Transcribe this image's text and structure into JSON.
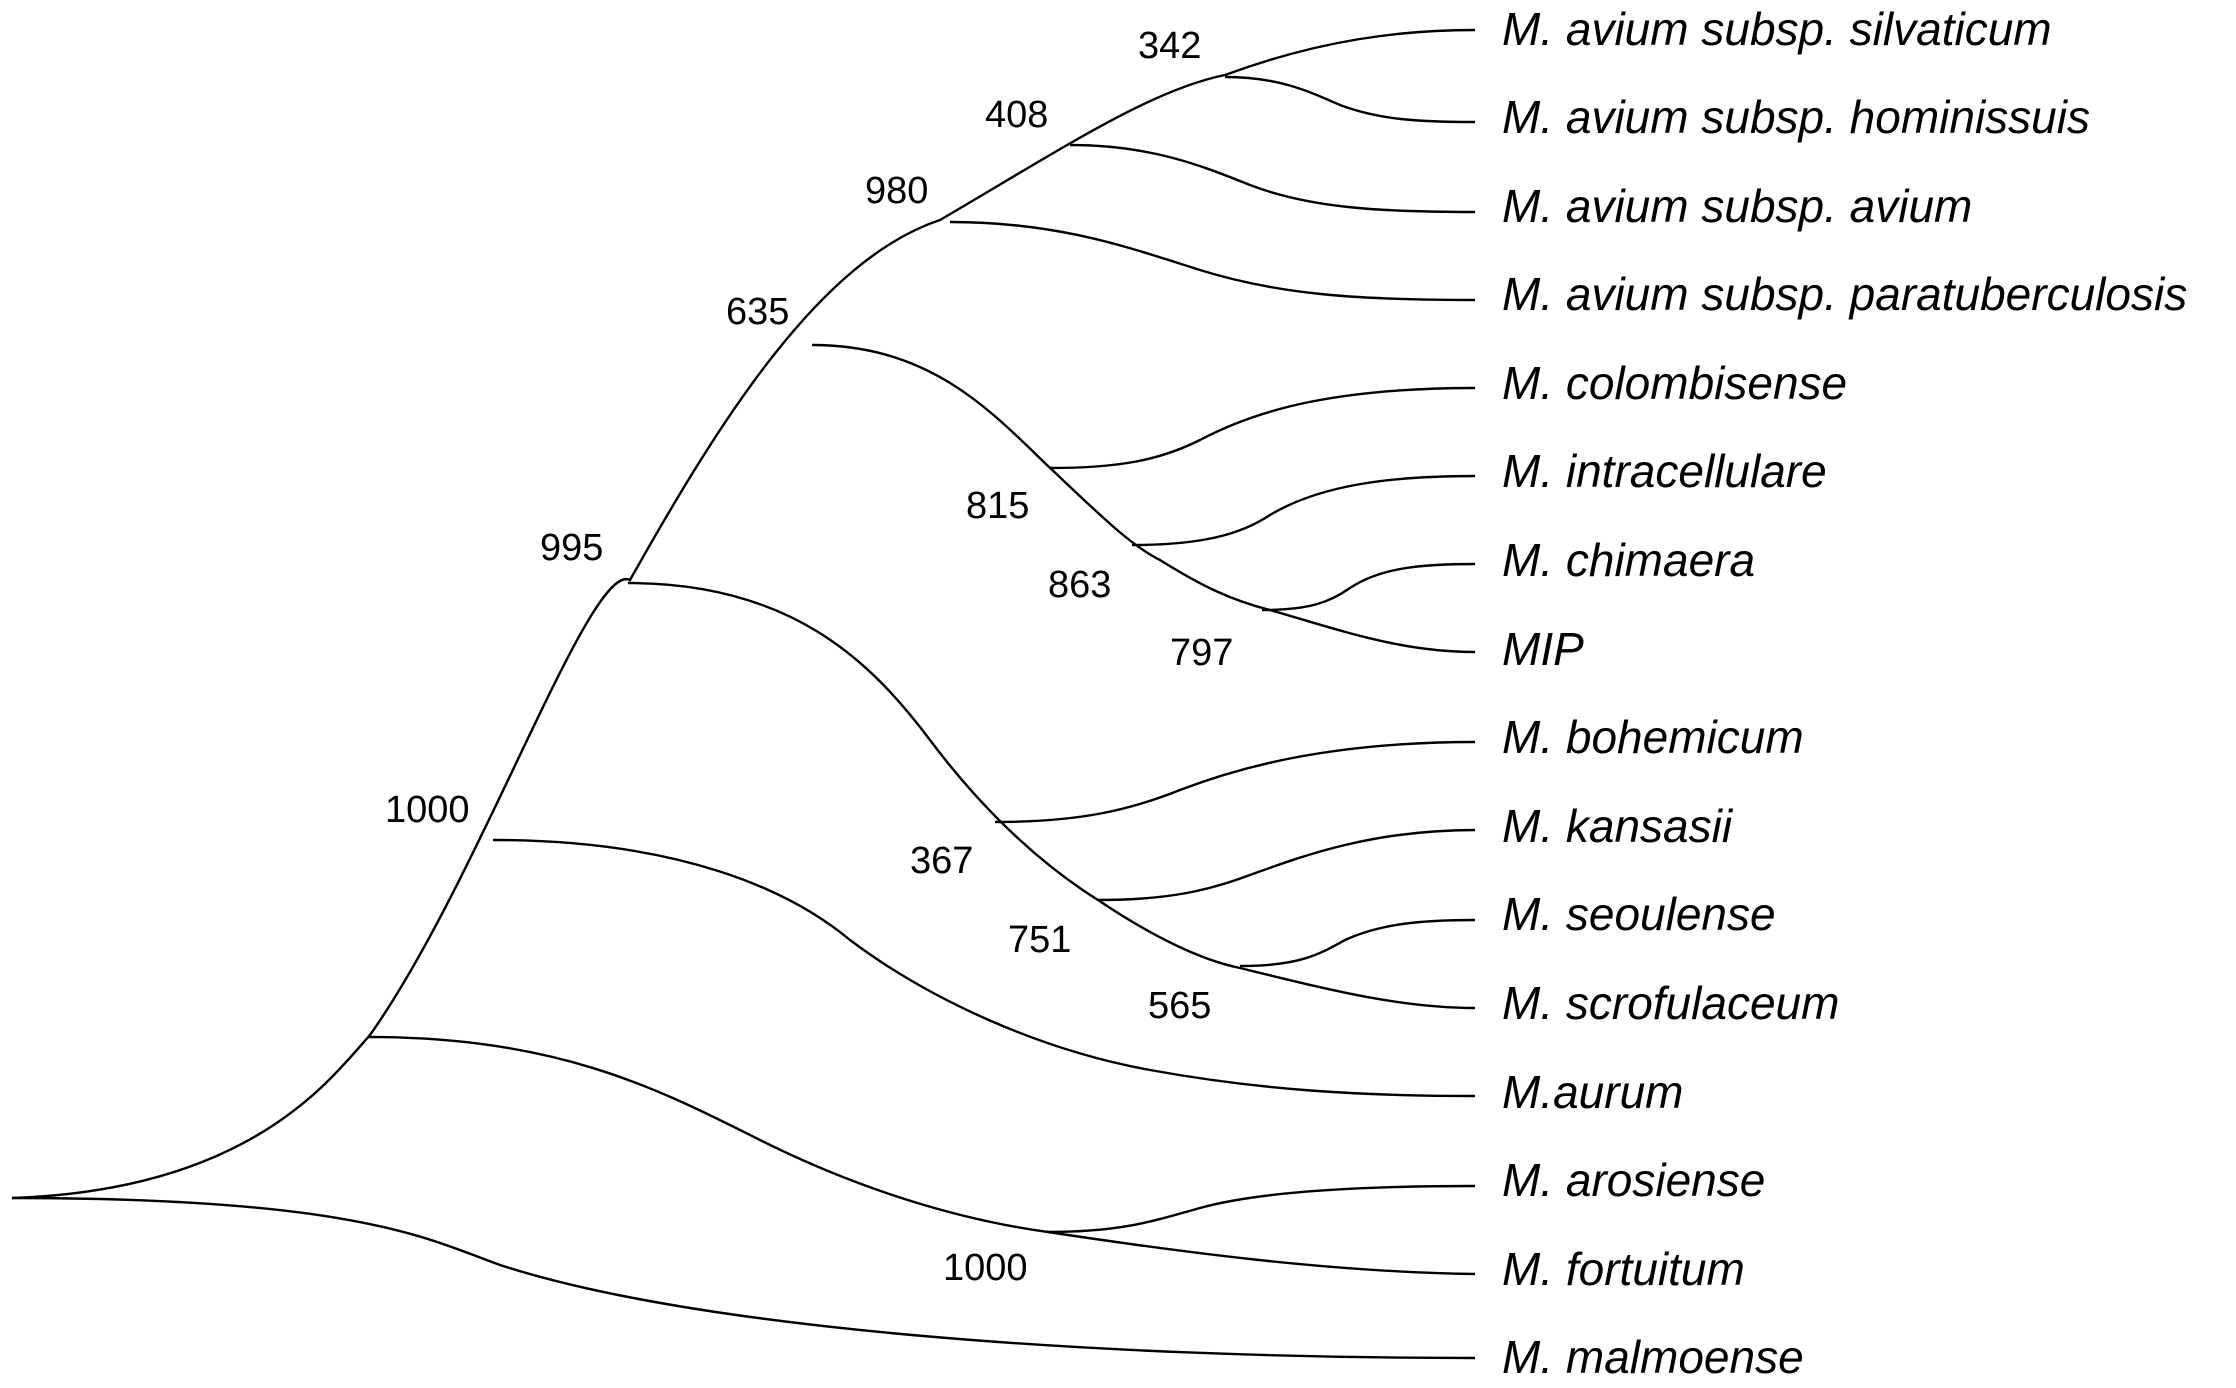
{
  "taxa": [
    "M. avium subsp. silvaticum",
    "M. avium subsp. hominissuis",
    "M. avium subsp. avium",
    "M. avium subsp. paratuberculosis",
    "M. colombisense",
    "M. intracellulare",
    "M. chimaera",
    "MIP",
    "M. bohemicum",
    "M. kansasii",
    "M. seoulense",
    "M. scrofulaceum",
    "M.aurum",
    "M. arosiense",
    "M. fortuitum",
    "M. malmoense"
  ],
  "support_values": [
    "342",
    "408",
    "980",
    "635",
    "815",
    "863",
    "797",
    "995",
    "367",
    "751",
    "565",
    "1000",
    "1000"
  ],
  "colors": {
    "branch": "#000000",
    "text": "#000000",
    "background": "#ffffff"
  }
}
